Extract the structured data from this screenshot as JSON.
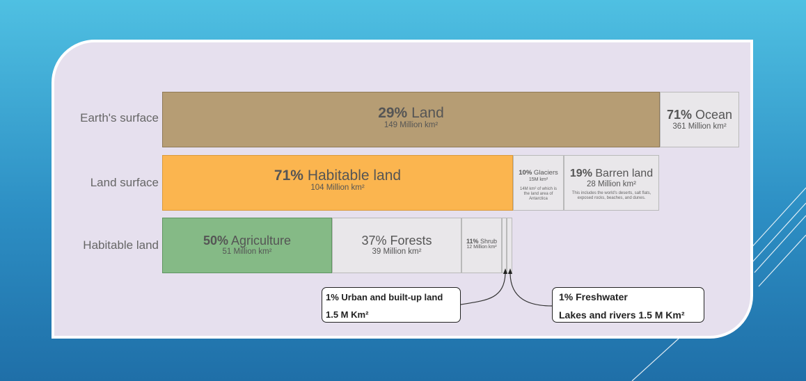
{
  "chart_data": {
    "type": "bar",
    "rows": [
      {
        "label": "Earth's surface",
        "segments": [
          {
            "name": "land",
            "percent": 29,
            "label": "Land",
            "area": "149 Million km²",
            "color": "#b69d74"
          },
          {
            "name": "ocean",
            "percent": 71,
            "label": "Ocean",
            "area": "361 Million km²",
            "color": "#e9e7ea"
          }
        ]
      },
      {
        "label": "Land surface",
        "segments": [
          {
            "name": "habitable",
            "percent": 71,
            "label": "Habitable land",
            "area": "104 Million km²",
            "color": "#fbb54f"
          },
          {
            "name": "glaciers",
            "percent": 10,
            "label": "Glaciers",
            "area": "15M km²",
            "note": "14M km² of which is the land area of Antarctica",
            "color": "#e9e7ea"
          },
          {
            "name": "barren",
            "percent": 19,
            "label": "Barren land",
            "area": "28 Million km²",
            "note": "This includes the world's deserts, salt flats, exposed rocks, beaches, and dunes.",
            "color": "#e9e7ea"
          }
        ]
      },
      {
        "label": "Habitable land",
        "segments": [
          {
            "name": "agriculture",
            "percent": 50,
            "label": "Agriculture",
            "area": "51 Million km²",
            "color": "#85ba86"
          },
          {
            "name": "forests",
            "percent": 37,
            "label": "Forests",
            "area": "39 Million km²",
            "color": "#e9e7ea"
          },
          {
            "name": "shrub",
            "percent": 11,
            "label": "Shrub",
            "area": "12 Million km²",
            "color": "#e9e7ea"
          },
          {
            "name": "urban",
            "percent": 1,
            "color": "#e9e7ea"
          },
          {
            "name": "freshwater",
            "percent": 1,
            "color": "#e9e7ea"
          }
        ]
      }
    ],
    "callouts": {
      "urban": {
        "line1": "1% Urban and built-up land",
        "line2": "1.5 M Km²"
      },
      "freshwater": {
        "line1": "1% Freshwater",
        "line2": "Lakes and rivers 1.5 M Km²"
      }
    }
  },
  "colors": {
    "background_top": "#4fc0e2",
    "background_bottom": "#1f6fa8",
    "card": "#e6e0ee"
  }
}
